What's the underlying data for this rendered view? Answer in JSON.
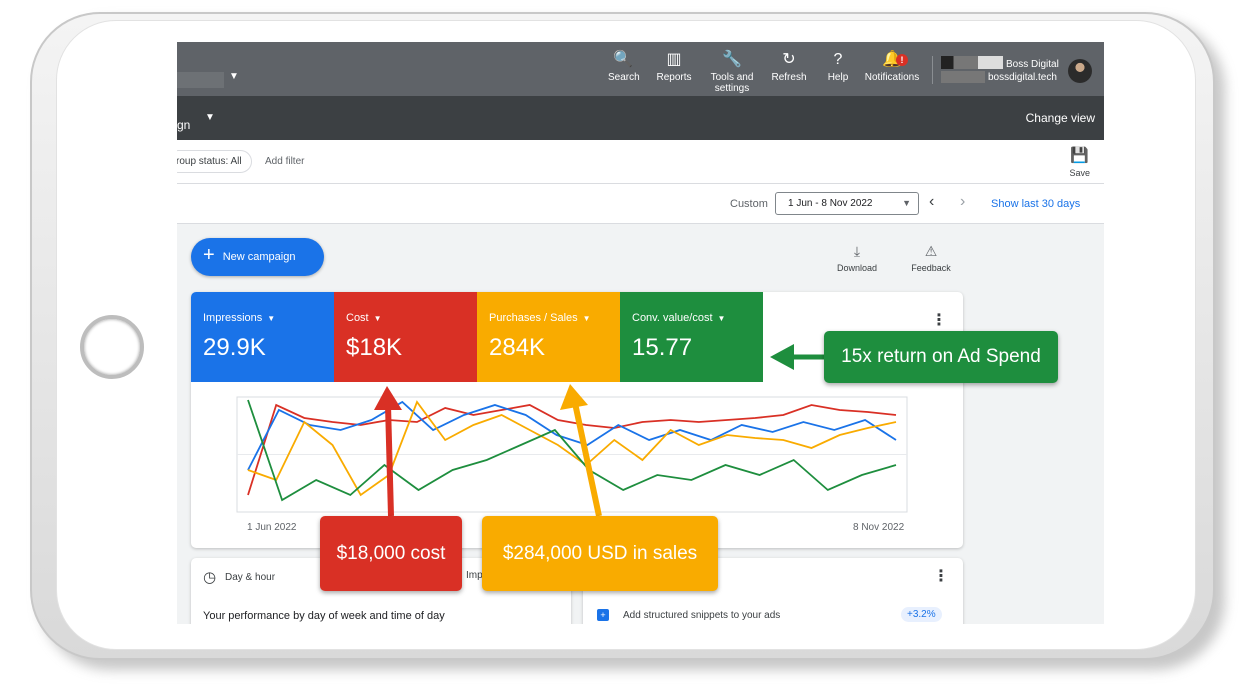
{
  "topbar": {
    "dropdown_caret": "▼",
    "items": [
      {
        "label": "Search",
        "icon": "🔍"
      },
      {
        "label": "Reports",
        "icon": "▥"
      },
      {
        "label": "Tools and settings",
        "icon": "🔧"
      },
      {
        "label": "Refresh",
        "icon": "↻"
      },
      {
        "label": "Help",
        "icon": "?"
      },
      {
        "label": "Notifications",
        "icon": "🔔",
        "badge": "!"
      }
    ],
    "account_name": "Boss Digital",
    "account_domain": "bossdigital.tech"
  },
  "subbar": {
    "title": "gn",
    "caret": "▼",
    "change_view": "Change view"
  },
  "filters": {
    "chip": "roup status: All",
    "add_filter": "Add filter",
    "save_label": "Save",
    "save_icon": "💾"
  },
  "datebar": {
    "custom_label": "Custom",
    "range": "1 Jun - 8 Nov 2022",
    "caret": "▼",
    "prev": "‹",
    "next": "›",
    "show_last": "Show last 30 days"
  },
  "actions": {
    "new_campaign": "New campaign",
    "plus": "+",
    "download": "Download",
    "download_icon": "⤓",
    "feedback": "Feedback",
    "feedback_icon": "⚠"
  },
  "metrics": [
    {
      "label": "Impressions",
      "value": "29.9K",
      "color": "#1a73e8"
    },
    {
      "label": "Cost",
      "value": "$18K",
      "color": "#d93025"
    },
    {
      "label": "Purchases / Sales",
      "value": "284K",
      "color": "#f9ab00"
    },
    {
      "label": "Conv. value/cost",
      "value": "15.77",
      "color": "#1e8e3e"
    }
  ],
  "metric_caret": "▼",
  "menu_dots": "⋮",
  "chart_data": {
    "type": "line",
    "x_start_label": "1 Jun 2022",
    "x_end_label": "8 Nov 2022",
    "series": [
      {
        "color": "#d93025",
        "values": [
          0.05,
          0.95,
          0.82,
          0.78,
          0.75,
          0.8,
          0.78,
          0.92,
          0.85,
          0.9,
          0.95,
          0.8,
          0.75,
          0.72,
          0.78,
          0.8,
          0.78,
          0.8,
          0.82,
          0.85,
          0.95,
          0.9,
          0.88,
          0.85
        ]
      },
      {
        "color": "#1a73e8",
        "values": [
          0.3,
          0.9,
          0.75,
          0.7,
          0.8,
          0.98,
          0.7,
          0.85,
          0.95,
          0.85,
          0.65,
          0.55,
          0.75,
          0.6,
          0.7,
          0.6,
          0.75,
          0.68,
          0.78,
          0.7,
          0.8,
          0.6
        ]
      },
      {
        "color": "#f9ab00",
        "values": [
          0.3,
          0.2,
          0.78,
          0.55,
          0.05,
          0.25,
          0.98,
          0.6,
          0.75,
          0.85,
          0.7,
          0.55,
          0.35,
          0.6,
          0.4,
          0.7,
          0.55,
          0.65,
          0.62,
          0.6,
          0.52,
          0.65,
          0.72,
          0.78
        ]
      },
      {
        "color": "#1e8e3e",
        "values": [
          1.0,
          0.0,
          0.2,
          0.05,
          0.35,
          0.1,
          0.3,
          0.4,
          0.55,
          0.7,
          0.3,
          0.1,
          0.25,
          0.2,
          0.35,
          0.25,
          0.4,
          0.1,
          0.25,
          0.35
        ]
      }
    ]
  },
  "cards": {
    "day_hour_icon": "◷",
    "day_hour_title": "Day & hour",
    "day_hour_tab": "Impres",
    "day_hour_text": "Your performance by day of week and time of day",
    "snippet_icon": "+",
    "snippet_text": "Add structured snippets to your ads",
    "snippet_badge": "+3.2%"
  },
  "annotations": {
    "roas": "15x return on Ad Spend",
    "cost": "$18,000 cost",
    "sales": "$284,000 USD in sales"
  }
}
